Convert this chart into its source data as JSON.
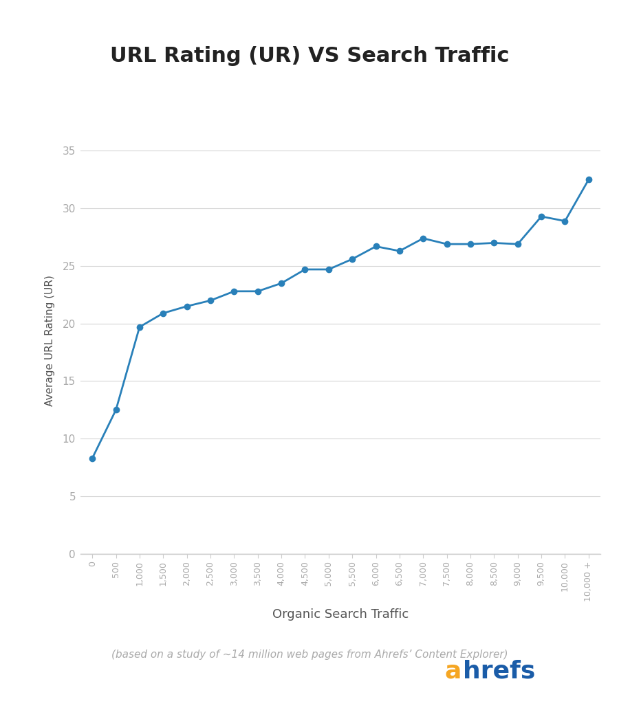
{
  "title": "URL Rating (UR) VS Search Traffic",
  "xlabel": "Organic Search Traffic",
  "ylabel": "Average URL Rating (UR)",
  "subtitle": "(based on a study of ~14 million web pages from Ahrefs’ Content Explorer)",
  "x_labels": [
    "0",
    "500",
    "1,000",
    "1,500",
    "2,000",
    "2,500",
    "3,000",
    "3,500",
    "4,000",
    "4,500",
    "5,000",
    "5,500",
    "6,000",
    "6,500",
    "7,000",
    "7,500",
    "8,000",
    "8,500",
    "9,000",
    "9,500",
    "10,000",
    "10,000 +"
  ],
  "y_values": [
    8.3,
    12.5,
    19.7,
    20.9,
    21.5,
    22.0,
    22.8,
    22.8,
    23.5,
    24.7,
    24.7,
    25.6,
    26.7,
    26.3,
    27.4,
    26.9,
    26.9,
    27.0,
    26.9,
    29.3,
    28.9,
    32.5
  ],
  "line_color": "#2980b9",
  "marker_color": "#2980b9",
  "background_color": "#ffffff",
  "grid_color": "#d5d5d5",
  "axis_color": "#cccccc",
  "title_color": "#222222",
  "label_color": "#555555",
  "tick_color": "#aaaaaa",
  "ylim": [
    0,
    37
  ],
  "yticks": [
    0,
    5,
    10,
    15,
    20,
    25,
    30,
    35
  ],
  "ahrefs_orange": "#f5a623",
  "ahrefs_blue": "#1a5ca8"
}
